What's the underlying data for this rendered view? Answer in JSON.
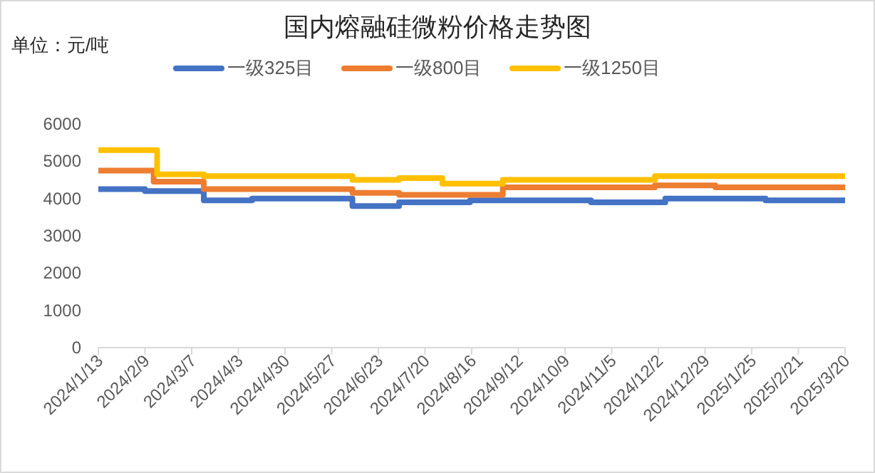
{
  "chart_data": {
    "type": "step",
    "title": "国内熔融硅微粉价格走势图",
    "annotations": [
      "单位：元/吨"
    ],
    "legend": "top",
    "xlim": [
      "2024-01-13",
      "2025-03-20"
    ],
    "xticks": [
      {
        "value": "2024-01-13",
        "label": "2024/1/13"
      },
      {
        "value": "2024-02-09",
        "label": "2024/2/9"
      },
      {
        "value": "2024-03-07",
        "label": "2024/3/7"
      },
      {
        "value": "2024-04-03",
        "label": "2024/4/3"
      },
      {
        "value": "2024-04-30",
        "label": "2024/4/30"
      },
      {
        "value": "2024-05-27",
        "label": "2024/5/27"
      },
      {
        "value": "2024-06-23",
        "label": "2024/6/23"
      },
      {
        "value": "2024-07-20",
        "label": "2024/7/20"
      },
      {
        "value": "2024-08-16",
        "label": "2024/8/16"
      },
      {
        "value": "2024-09-12",
        "label": "2024/9/12"
      },
      {
        "value": "2024-10-09",
        "label": "2024/10/9"
      },
      {
        "value": "2024-11-05",
        "label": "2024/11/5"
      },
      {
        "value": "2024-12-02",
        "label": "2024/12/2"
      },
      {
        "value": "2024-12-29",
        "label": "2024/12/29"
      },
      {
        "value": "2025-01-25",
        "label": "2025/1/25"
      },
      {
        "value": "2025-02-21",
        "label": "2025/2/21"
      },
      {
        "value": "2025-03-20",
        "label": "2025/3/20"
      }
    ],
    "ylim": [
      0,
      6000
    ],
    "yticks": [
      0,
      1000,
      2000,
      3000,
      4000,
      5000,
      6000
    ],
    "series": [
      {
        "name": "一级325目",
        "color": "#4472c4",
        "x": [
          "2024-01-13",
          "2024-02-09",
          "2024-03-14",
          "2024-04-11",
          "2024-06-08",
          "2024-07-05",
          "2024-08-15",
          "2024-10-24",
          "2024-12-06",
          "2025-02-02",
          "2025-03-20"
        ],
        "values": [
          4250,
          4200,
          3950,
          4000,
          3800,
          3900,
          3950,
          3900,
          4000,
          3950,
          3950
        ]
      },
      {
        "name": "一级800目",
        "color": "#ed7d31",
        "x": [
          "2024-01-13",
          "2024-02-14",
          "2024-03-14",
          "2024-06-08",
          "2024-07-05",
          "2024-09-03",
          "2024-11-30",
          "2025-01-04",
          "2025-03-20"
        ],
        "values": [
          4750,
          4450,
          4250,
          4150,
          4100,
          4300,
          4350,
          4300,
          4300
        ]
      },
      {
        "name": "一级1250目",
        "color": "#ffc000",
        "x": [
          "2024-01-13",
          "2024-02-16",
          "2024-03-14",
          "2024-06-08",
          "2024-07-05",
          "2024-07-30",
          "2024-09-03",
          "2024-11-30",
          "2025-03-20"
        ],
        "values": [
          5300,
          4650,
          4600,
          4500,
          4550,
          4400,
          4500,
          4600,
          4600
        ]
      }
    ]
  }
}
